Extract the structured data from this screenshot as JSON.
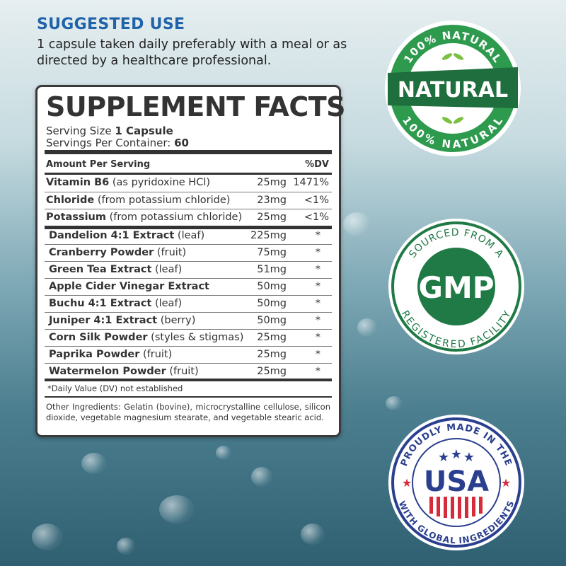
{
  "suggested_use": {
    "title": "SUGGESTED USE",
    "text": "1 capsule taken daily preferably with a  meal or as directed by a healthcare professional."
  },
  "label": {
    "title": "SUPPLEMENT FACTS",
    "serving_size_label": "Serving Size",
    "serving_size_value": "1 Capsule",
    "servings_label": "Servings Per Container:",
    "servings_value": "60",
    "header_amount": "Amount Per Serving",
    "header_dv": "%DV",
    "nutrients": [
      {
        "name": "Vitamin B6",
        "detail": "(as pyridoxine HCl)",
        "amount": "25mg",
        "dv": "1471%"
      },
      {
        "name": "Chloride",
        "detail": "(from potassium chloride)",
        "amount": "23mg",
        "dv": "<1%"
      },
      {
        "name": "Potassium",
        "detail": "(from potassium chloride)",
        "amount": "25mg",
        "dv": "<1%"
      }
    ],
    "ingredients": [
      {
        "name": "Dandelion 4:1 Extract",
        "detail": "(leaf)",
        "amount": "225mg",
        "dv": "*"
      },
      {
        "name": "Cranberry Powder",
        "detail": "(fruit)",
        "amount": "75mg",
        "dv": "*"
      },
      {
        "name": "Green Tea Extract",
        "detail": "(leaf)",
        "amount": "51mg",
        "dv": "*"
      },
      {
        "name": "Apple Cider Vinegar Extract",
        "detail": "",
        "amount": "50mg",
        "dv": "*"
      },
      {
        "name": "Buchu 4:1 Extract",
        "detail": "(leaf)",
        "amount": "50mg",
        "dv": "*"
      },
      {
        "name": "Juniper 4:1 Extract",
        "detail": "(berry)",
        "amount": "50mg",
        "dv": "*"
      },
      {
        "name": "Corn Silk Powder",
        "detail": "(styles & stigmas)",
        "amount": "25mg",
        "dv": "*"
      },
      {
        "name": "Paprika Powder",
        "detail": "(fruit)",
        "amount": "25mg",
        "dv": "*"
      },
      {
        "name": "Watermelon Powder",
        "detail": "(fruit)",
        "amount": "25mg",
        "dv": "*"
      }
    ],
    "footnote": "*Daily Value (DV) not established",
    "other_ingredients": "Other Ingredients: Gelatin (bovine), microcrystalline cellulose, silicon dioxide, vegetable magnesium stearate, and vegetable stearic acid."
  },
  "badges": {
    "natural": {
      "top": "100% NATURAL",
      "center": "NATURAL",
      "bottom": "100% NATURAL",
      "color": "#2e9a4e"
    },
    "gmp": {
      "top": "SOURCED FROM A",
      "center": "GMP",
      "bottom": "REGISTERED FACILITY",
      "color": "#1f7a45"
    },
    "usa": {
      "top": "PROUDLY MADE IN THE",
      "center": "USA",
      "bottom": "WITH GLOBAL INGREDIENTS",
      "blue": "#2b3f8f",
      "red": "#d62b3a"
    }
  }
}
